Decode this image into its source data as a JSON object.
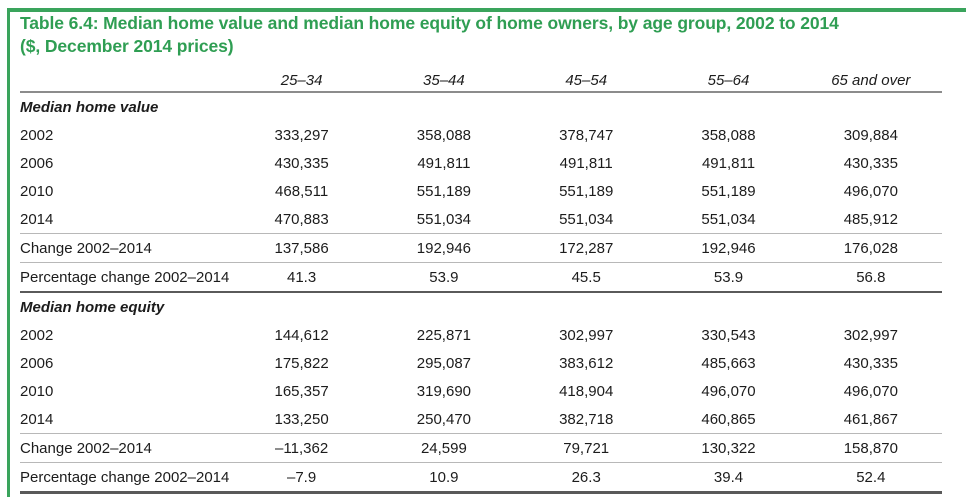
{
  "title": {
    "line1": "Table 6.4: Median home value and median home equity of home owners, by age group, 2002 to 2014",
    "line2": "($, December 2014 prices)"
  },
  "accent_color": "#3aa45c",
  "table": {
    "columns": [
      "25–34",
      "35–44",
      "45–54",
      "55–64",
      "65 and over"
    ],
    "sections": [
      {
        "label": "Median home value",
        "rows": [
          {
            "label": "2002",
            "values": [
              "333,297",
              "358,088",
              "378,747",
              "358,088",
              "309,884"
            ]
          },
          {
            "label": "2006",
            "values": [
              "430,335",
              "491,811",
              "491,811",
              "491,811",
              "430,335"
            ]
          },
          {
            "label": "2010",
            "values": [
              "468,511",
              "551,189",
              "551,189",
              "551,189",
              "496,070"
            ]
          },
          {
            "label": "2014",
            "values": [
              "470,883",
              "551,034",
              "551,034",
              "551,034",
              "485,912"
            ]
          },
          {
            "label": "Change 2002–2014",
            "values": [
              "137,586",
              "192,946",
              "172,287",
              "192,946",
              "176,028"
            ]
          },
          {
            "label": "Percentage change 2002–2014",
            "values": [
              "41.3",
              "53.9",
              "45.5",
              "53.9",
              "56.8"
            ]
          }
        ]
      },
      {
        "label": "Median home equity",
        "rows": [
          {
            "label": "2002",
            "values": [
              "144,612",
              "225,871",
              "302,997",
              "330,543",
              "302,997"
            ]
          },
          {
            "label": "2006",
            "values": [
              "175,822",
              "295,087",
              "383,612",
              "485,663",
              "430,335"
            ]
          },
          {
            "label": "2010",
            "values": [
              "165,357",
              "319,690",
              "418,904",
              "496,070",
              "496,070"
            ]
          },
          {
            "label": "2014",
            "values": [
              "133,250",
              "250,470",
              "382,718",
              "460,865",
              "461,867"
            ]
          },
          {
            "label": "Change 2002–2014",
            "values": [
              "–11,362",
              "24,599",
              "79,721",
              "130,322",
              "158,870"
            ]
          },
          {
            "label": "Percentage change 2002–2014",
            "values": [
              "–7.9",
              "10.9",
              "26.3",
              "39.4",
              "52.4"
            ]
          }
        ]
      }
    ]
  }
}
